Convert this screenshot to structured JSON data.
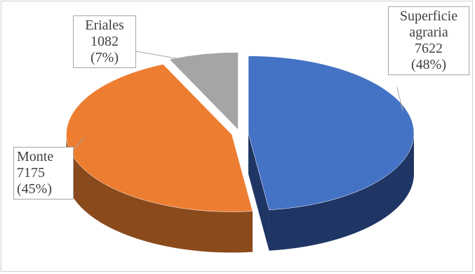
{
  "chart_data": {
    "type": "pie",
    "style": "3d-exploded",
    "slices": [
      {
        "label_lines": [
          "Superficie",
          "agraria"
        ],
        "value": 7622,
        "value_text": "7622",
        "percent_text": "(48%)",
        "color": "#4472C4",
        "side_color": "#1F3564"
      },
      {
        "label_lines": [
          "Monte"
        ],
        "value": 7175,
        "value_text": "7175",
        "percent_text": "(45%)",
        "color": "#ED7D31",
        "side_color": "#8A4A1C"
      },
      {
        "label_lines": [
          "Eriales"
        ],
        "value": 1082,
        "value_text": "1082",
        "percent_text": "(7%)",
        "color": "#A5A5A5",
        "side_color": "#5E5E5E"
      }
    ],
    "legend": "none",
    "data_labels": "callout"
  }
}
